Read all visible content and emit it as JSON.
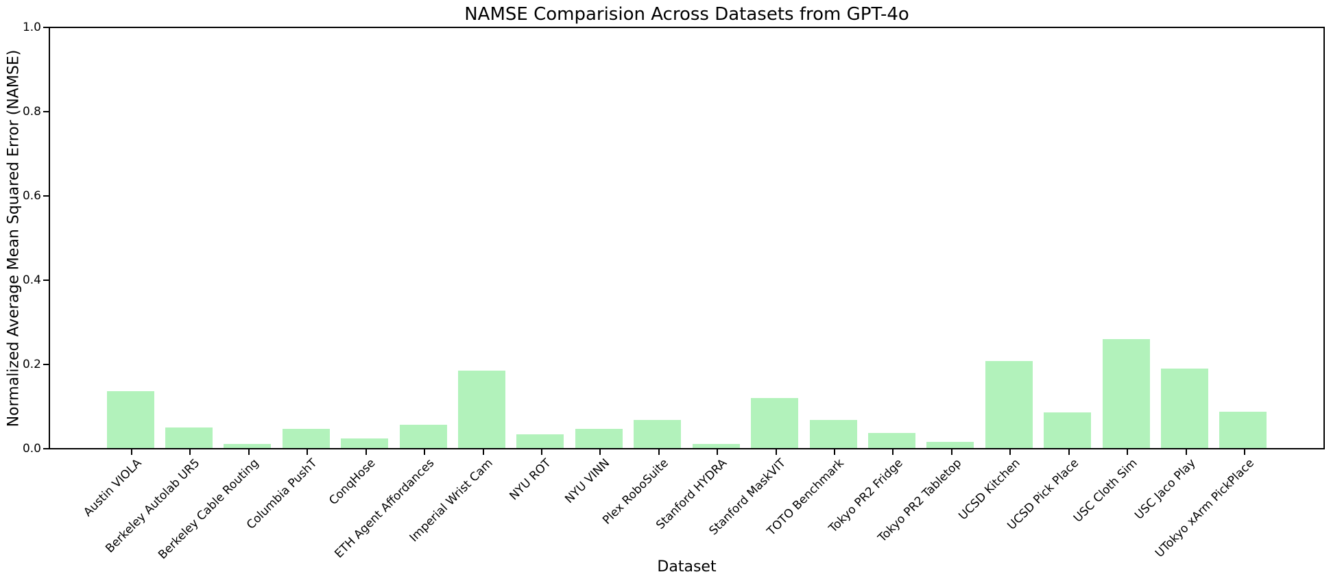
{
  "chart_data": {
    "type": "bar",
    "title": "NAMSE Comparision Across Datasets from GPT-4o",
    "xlabel": "Dataset",
    "ylabel": "Normalized Average Mean Squared Error (NAMSE)",
    "categories": [
      "Austin VIOLA",
      "Berkeley Autolab UR5",
      "Berkeley Cable Routing",
      "Columbia PushT",
      "ConqHose",
      "ETH Agent Affordances",
      "Imperial Wrist Cam",
      "NYU ROT",
      "NYU VINN",
      "Plex RoboSuite",
      "Stanford HYDRA",
      "Stanford MaskVIT",
      "TOTO Benchmark",
      "Tokyo PR2 Fridge",
      "Tokyo PR2 Tabletop",
      "UCSD Kitchen",
      "UCSD Pick Place",
      "USC Cloth Sim",
      "USC Jaco Play",
      "UTokyo xArm PickPlace"
    ],
    "values": [
      0.135,
      0.048,
      0.01,
      0.046,
      0.023,
      0.055,
      0.183,
      0.033,
      0.046,
      0.066,
      0.009,
      0.118,
      0.066,
      0.036,
      0.014,
      0.207,
      0.085,
      0.259,
      0.188,
      0.086
    ],
    "ylim": [
      0.0,
      1.0
    ],
    "ytick_values": [
      0.0,
      0.2,
      0.4,
      0.6,
      0.8,
      1.0
    ],
    "ytick_labels": [
      "0.0",
      "0.2",
      "0.4",
      "0.6",
      "0.8",
      "1.0"
    ],
    "bar_color": "#b2f2bb",
    "background_color": "#ffffff",
    "grid": "off",
    "legend": "none"
  }
}
